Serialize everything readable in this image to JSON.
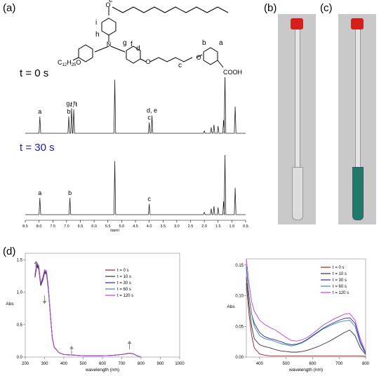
{
  "panels": {
    "a": "(a)",
    "b": "(b)",
    "c": "(c)",
    "d": "(d)"
  },
  "structure": {
    "atoms": [
      "e",
      "i",
      "h",
      "g",
      "f",
      "d",
      "c",
      "b",
      "a",
      "O",
      "N"
    ],
    "cooh": "COOH",
    "dodecyloxy": "C12H25O",
    "dodecyloxy_main": "C",
    "dodecyloxy_sub1": "12",
    "dodecyloxy_mid": "H",
    "dodecyloxy_sub2": "25",
    "dodecyloxy_end": "O"
  },
  "nmr": {
    "spectra": [
      {
        "label": "t = 0 s",
        "color": "#000000",
        "peaks": [
          {
            "ppm": 7.97,
            "label": "a"
          },
          {
            "ppm": 6.92,
            "label": "b"
          },
          {
            "ppm": 6.82,
            "label": "g, h"
          },
          {
            "ppm": 6.74,
            "label": "f, i"
          },
          {
            "ppm": 5.25,
            "label": ""
          },
          {
            "ppm": 4.0,
            "label": "c"
          },
          {
            "ppm": 3.9,
            "label": "d, e"
          }
        ]
      },
      {
        "label": "t = 30 s",
        "color": "#1a1aa8",
        "peaks": [
          {
            "ppm": 7.97,
            "label": "a"
          },
          {
            "ppm": 6.88,
            "label": "b"
          },
          {
            "ppm": 5.25,
            "label": ""
          },
          {
            "ppm": 4.0,
            "label": "c"
          }
        ]
      }
    ],
    "axis_ticks": [
      "8.5",
      "8.0",
      "7.5",
      "7.0",
      "6.5",
      "6.0",
      "5.5",
      "5.0",
      "4.5",
      "4.0",
      "3.5",
      "3.0",
      "2.5",
      "2.0",
      "1.5",
      "1.0",
      "0.5"
    ],
    "axis_unit": "(ppm)"
  },
  "chart_data": [
    {
      "type": "line",
      "xlabel": "wavelength (nm)",
      "ylabel": "Abs",
      "xlim": [
        200,
        1000
      ],
      "ylim": [
        0,
        1.6
      ],
      "xticks": [
        "200",
        "300",
        "400",
        "500",
        "600",
        "700",
        "800",
        "900",
        "1000"
      ],
      "yticks": [
        "0.0",
        "0.5",
        "1.0",
        "1.5"
      ],
      "legend_position": "right",
      "series": [
        {
          "name": "t = 0 s",
          "color": "#9b1f2a"
        },
        {
          "name": "t = 10 s",
          "color": "#333333"
        },
        {
          "name": "t = 30 s",
          "color": "#2a2ab0"
        },
        {
          "name": "t = 60 s",
          "color": "#3a8a8a"
        },
        {
          "name": "t = 120 s",
          "color": "#c040d0"
        }
      ],
      "x": [
        250,
        260,
        270,
        280,
        290,
        300,
        310,
        320,
        330,
        340,
        350,
        360,
        370,
        380,
        400,
        500,
        600,
        650,
        700,
        720,
        740,
        760,
        780,
        800
      ],
      "y": [
        1.25,
        1.43,
        1.38,
        1.12,
        1.2,
        1.32,
        1.3,
        1.05,
        0.65,
        0.3,
        0.15,
        0.12,
        0.08,
        0.06,
        0.04,
        0.02,
        0.02,
        0.025,
        0.04,
        0.05,
        0.06,
        0.05,
        0.02,
        0.0
      ]
    },
    {
      "type": "line",
      "xlabel": "wavelength (nm)",
      "ylabel": "Abs",
      "xlim": [
        350,
        800
      ],
      "ylim": [
        0,
        0.16
      ],
      "xticks": [
        "400",
        "500",
        "600",
        "700",
        "800"
      ],
      "yticks": [
        "0.00",
        "0.05",
        "0.10",
        "0.15"
      ],
      "legend_position": "right",
      "x": [
        350,
        360,
        370,
        380,
        400,
        420,
        440,
        460,
        480,
        500,
        520,
        540,
        560,
        580,
        600,
        620,
        640,
        660,
        680,
        700,
        720,
        740,
        760,
        780,
        800
      ],
      "series": [
        {
          "name": "t = 0 s",
          "color": "#9b1f2a",
          "values": [
            0.12,
            0.07,
            0.035,
            0.015,
            0.005,
            0.003,
            0.002,
            0.002,
            0.002,
            0.002,
            0.002,
            0.002,
            0.002,
            0.002,
            0.002,
            0.002,
            0.002,
            0.002,
            0.002,
            0.002,
            0.002,
            0.002,
            0.002,
            0.002,
            0.001
          ]
        },
        {
          "name": "t = 10 s",
          "color": "#333333",
          "values": [
            0.13,
            0.085,
            0.05,
            0.03,
            0.02,
            0.017,
            0.015,
            0.012,
            0.01,
            0.009,
            0.008,
            0.008,
            0.009,
            0.011,
            0.014,
            0.017,
            0.021,
            0.025,
            0.03,
            0.035,
            0.04,
            0.044,
            0.035,
            0.015,
            0.004
          ]
        },
        {
          "name": "t = 30 s",
          "color": "#2a2ab0",
          "values": [
            0.148,
            0.1,
            0.07,
            0.055,
            0.04,
            0.033,
            0.03,
            0.028,
            0.025,
            0.022,
            0.02,
            0.021,
            0.024,
            0.029,
            0.035,
            0.041,
            0.047,
            0.052,
            0.056,
            0.06,
            0.063,
            0.064,
            0.055,
            0.025,
            0.006
          ]
        },
        {
          "name": "t = 60 s",
          "color": "#3a8a8a",
          "values": [
            0.145,
            0.1,
            0.07,
            0.05,
            0.035,
            0.03,
            0.028,
            0.025,
            0.022,
            0.02,
            0.018,
            0.02,
            0.023,
            0.028,
            0.034,
            0.04,
            0.046,
            0.05,
            0.054,
            0.057,
            0.059,
            0.06,
            0.05,
            0.022,
            0.005
          ]
        },
        {
          "name": "t = 120 s",
          "color": "#c040d0",
          "values": [
            0.16,
            0.12,
            0.09,
            0.075,
            0.06,
            0.053,
            0.048,
            0.044,
            0.038,
            0.032,
            0.027,
            0.026,
            0.028,
            0.032,
            0.038,
            0.045,
            0.052,
            0.057,
            0.062,
            0.066,
            0.07,
            0.071,
            0.06,
            0.03,
            0.008
          ]
        }
      ]
    }
  ]
}
